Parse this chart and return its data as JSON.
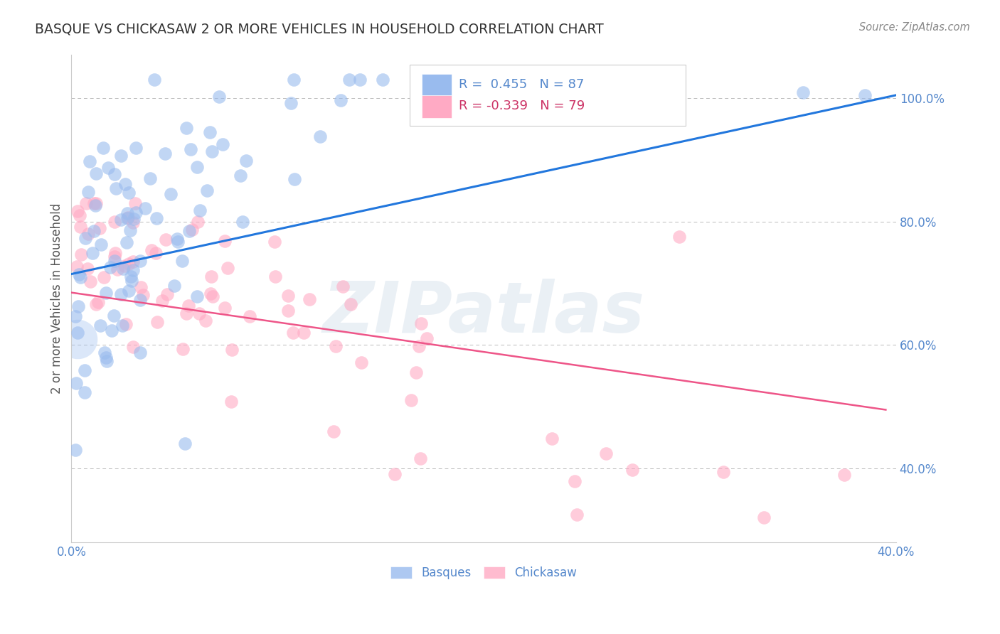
{
  "title": "BASQUE VS CHICKASAW 2 OR MORE VEHICLES IN HOUSEHOLD CORRELATION CHART",
  "source": "Source: ZipAtlas.com",
  "ylabel": "2 or more Vehicles in Household",
  "legend_entries": [
    {
      "label": "R =  0.455   N = 87",
      "color": "#aac4e8"
    },
    {
      "label": "R = -0.339   N = 79",
      "color": "#f4adc4"
    }
  ],
  "legend_labels": [
    "Basques",
    "Chickasaw"
  ],
  "title_color": "#333333",
  "source_color": "#888888",
  "tick_label_color": "#5588cc",
  "ylabel_color": "#555555",
  "watermark_text": "ZIPatlas",
  "blue_line_color": "#2277dd",
  "pink_line_color": "#ee5588",
  "blue_scatter_color": "#99bbee",
  "pink_scatter_color": "#ffaac4",
  "background_color": "#ffffff",
  "grid_color": "#bbbbbb",
  "xlim": [
    0.0,
    0.4
  ],
  "ylim": [
    0.28,
    1.07
  ],
  "blue_line_x": [
    0.0,
    0.4
  ],
  "blue_line_y": [
    0.715,
    1.005
  ],
  "pink_line_x": [
    0.0,
    0.395
  ],
  "pink_line_y": [
    0.685,
    0.495
  ]
}
